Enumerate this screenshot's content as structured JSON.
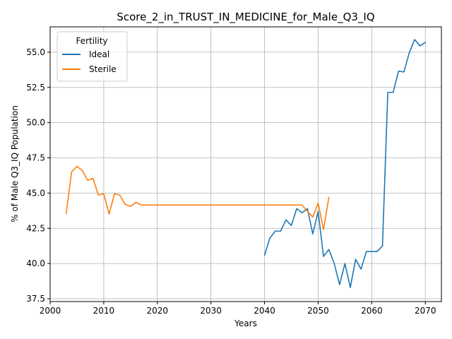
{
  "chart_data": {
    "type": "line",
    "title": "Score_2_in_TRUST_IN_MEDICINE_for_Male_Q3_IQ",
    "xlabel": "Years",
    "ylabel": "% of Male Q3_IQ Population",
    "xlim": [
      2000,
      2073
    ],
    "ylim": [
      37.3,
      56.8
    ],
    "x_ticks": [
      2000,
      2010,
      2020,
      2030,
      2040,
      2050,
      2060,
      2070
    ],
    "x_tick_labels": [
      "2000",
      "2010",
      "2020",
      "2030",
      "2040",
      "2050",
      "2060",
      "2070"
    ],
    "y_ticks": [
      37.5,
      40.0,
      42.5,
      45.0,
      47.5,
      50.0,
      52.5,
      55.0
    ],
    "y_tick_labels": [
      "37.5",
      "40.0",
      "42.5",
      "45.0",
      "47.5",
      "50.0",
      "52.5",
      "55.0"
    ],
    "grid": true,
    "legend": {
      "title": "Fertility",
      "placement": "top-left"
    },
    "series": [
      {
        "name": "Ideal",
        "color": "#1f77b4",
        "x": [
          2040,
          2041,
          2042,
          2043,
          2044,
          2045,
          2046,
          2047,
          2048,
          2049,
          2050,
          2051,
          2052,
          2053,
          2054,
          2055,
          2056,
          2057,
          2058,
          2059,
          2060,
          2061,
          2062,
          2063,
          2064,
          2065,
          2066,
          2067,
          2068,
          2069,
          2070
        ],
        "values": [
          40.6,
          41.8,
          42.3,
          42.3,
          43.1,
          42.7,
          43.9,
          43.6,
          43.9,
          42.1,
          43.7,
          40.5,
          41.0,
          40.0,
          38.5,
          40.0,
          38.3,
          40.3,
          39.6,
          40.85,
          40.85,
          40.85,
          41.25,
          52.15,
          52.15,
          53.65,
          53.6,
          54.95,
          55.9,
          55.45,
          55.7
        ]
      },
      {
        "name": "Sterile",
        "color": "#ff7f0e",
        "x": [
          2003,
          2004,
          2005,
          2006,
          2007,
          2008,
          2009,
          2010,
          2011,
          2012,
          2013,
          2014,
          2015,
          2016,
          2017,
          2018,
          2019,
          2020,
          2021,
          2022,
          2023,
          2024,
          2025,
          2026,
          2027,
          2028,
          2029,
          2030,
          2031,
          2032,
          2033,
          2034,
          2035,
          2036,
          2037,
          2038,
          2039,
          2040,
          2041,
          2042,
          2043,
          2044,
          2045,
          2046,
          2047,
          2048,
          2049,
          2050,
          2051,
          2052
        ],
        "values": [
          43.55,
          46.5,
          46.9,
          46.6,
          45.9,
          46.05,
          44.85,
          44.95,
          43.5,
          44.95,
          44.85,
          44.2,
          44.05,
          44.35,
          44.15,
          44.15,
          44.15,
          44.15,
          44.15,
          44.15,
          44.15,
          44.15,
          44.15,
          44.15,
          44.15,
          44.15,
          44.15,
          44.15,
          44.15,
          44.15,
          44.15,
          44.15,
          44.15,
          44.15,
          44.15,
          44.15,
          44.15,
          44.15,
          44.15,
          44.15,
          44.15,
          44.15,
          44.15,
          44.15,
          44.15,
          43.7,
          43.3,
          44.3,
          42.4,
          44.7
        ]
      }
    ]
  }
}
